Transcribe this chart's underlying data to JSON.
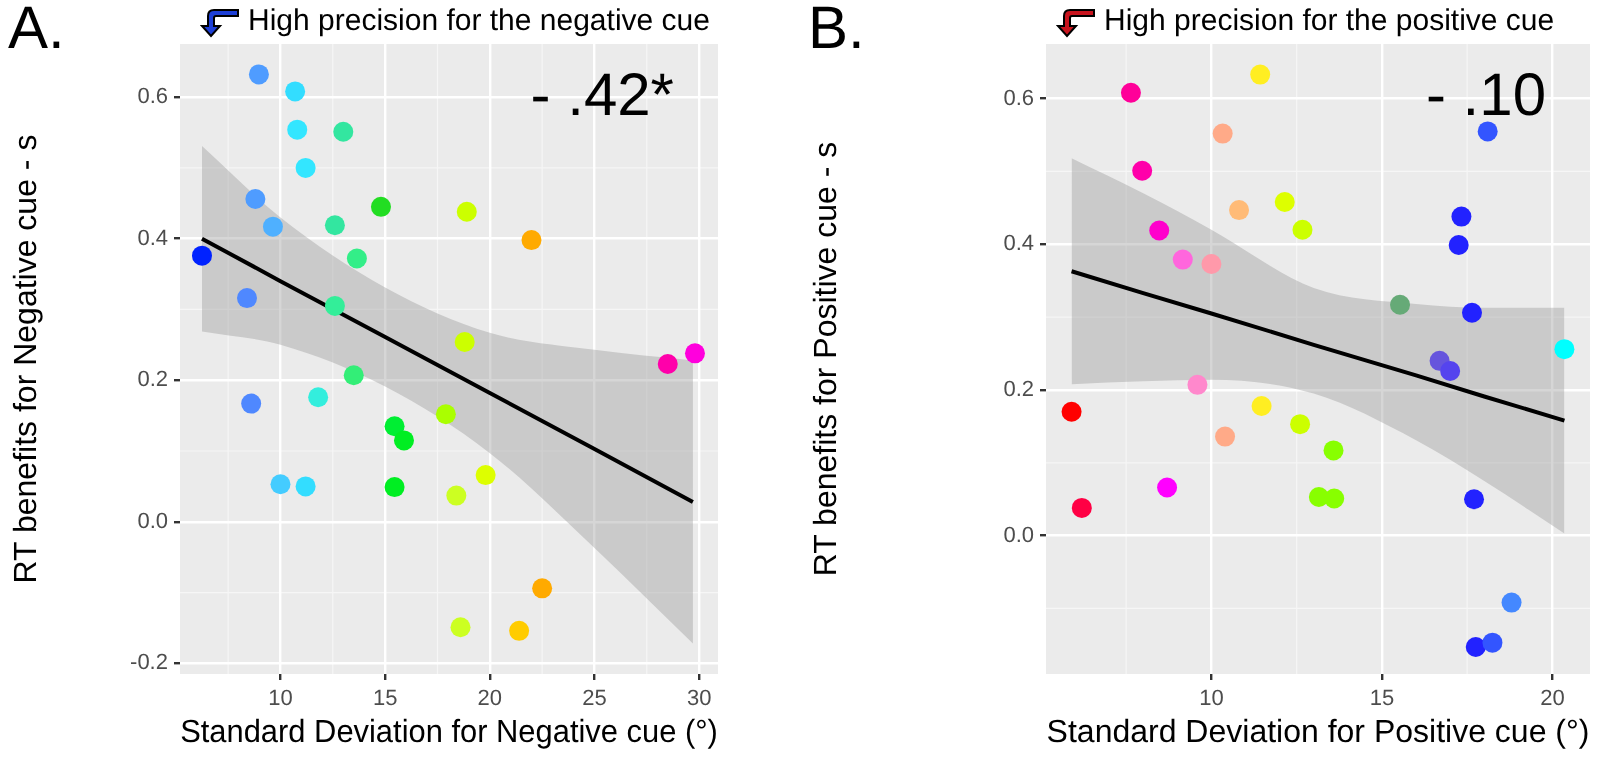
{
  "chart_data": [
    {
      "type": "scatter",
      "title": "A.",
      "subtitle": "High precision for the negative cue",
      "xlabel": "Standard Deviation for Negative cue (°)",
      "ylabel": "RT benefits for Negative cue - s",
      "annotations": [
        "- .42*"
      ],
      "xlim": [
        5.2,
        30.9
      ],
      "ylim": [
        -0.215,
        0.675
      ],
      "xticks": [
        10,
        15,
        20,
        25,
        30
      ],
      "yticks": [
        -0.2,
        {
          "value": 0,
          "label": "0.0"
        },
        0.2,
        0.4,
        0.6
      ],
      "grid": true,
      "legend": false,
      "series": [
        {
          "marker": "circle",
          "x": [
            8.97,
            10.7,
            10.8,
            13.0,
            11.2,
            8.8,
            14.8,
            9.64,
            12.6,
            18.9,
            21.99,
            6.25,
            13.65,
            8.4,
            12.6,
            18.8,
            28.5,
            29.8,
            13.5,
            8.6,
            11.8,
            15.45,
            15.9,
            17.9,
            10.0,
            11.2,
            15.45,
            19.8,
            18.4,
            22.5,
            18.6,
            21.4
          ],
          "values": [
            0.632,
            0.608,
            0.554,
            0.551,
            0.5,
            0.456,
            0.445,
            0.417,
            0.419,
            0.438,
            0.398,
            0.376,
            0.372,
            0.316,
            0.305,
            0.254,
            0.223,
            0.238,
            0.207,
            0.167,
            0.176,
            0.135,
            0.115,
            0.152,
            0.053,
            0.05,
            0.049,
            0.066,
            0.037,
            -0.094,
            -0.149,
            -0.154
          ],
          "colors": [
            "#4f9cff",
            "#33ddff",
            "#33e6ff",
            "#33e6a0",
            "#33e6ff",
            "#4f9cff",
            "#22dd22",
            "#4fb0ff",
            "#33e6a0",
            "#ccff00",
            "#ffaa00",
            "#0022ff",
            "#33ee88",
            "#4f88ff",
            "#33ee99",
            "#ccff00",
            "#ff00aa",
            "#ff00dd",
            "#33ee77",
            "#4f88ff",
            "#33eedd",
            "#00ee33",
            "#00ee22",
            "#aaff00",
            "#44ccff",
            "#33ddff",
            "#00ee22",
            "#ddff00",
            "#ccff22",
            "#ffaa00",
            "#ccff22",
            "#ffcc00"
          ]
        },
        {
          "type": "line",
          "color": "#000000",
          "x": [
            6.25,
            10,
            15,
            20,
            25,
            29.7
          ],
          "values": [
            0.4,
            0.34,
            0.261,
            0.182,
            0.103,
            0.028
          ],
          "lower": [
            0.269,
            0.25,
            0.191,
            0.097,
            -0.037,
            -0.172
          ],
          "upper": [
            0.531,
            0.43,
            0.331,
            0.267,
            0.243,
            0.228
          ]
        }
      ]
    },
    {
      "type": "scatter",
      "title": "B.",
      "subtitle": "High precision for the positive cue",
      "xlabel": "Standard Deviation for Positive cue (°)",
      "ylabel": "RT benefits for Positive cue - s",
      "annotations": [
        "- .10"
      ],
      "xlim": [
        5.15,
        21.1
      ],
      "ylim": [
        -0.19,
        0.675
      ],
      "xticks": [
        10,
        15,
        20
      ],
      "yticks": [
        {
          "value": 0,
          "label": "0.0"
        },
        0.2,
        0.4,
        0.6
      ],
      "grid": true,
      "legend": false,
      "series": [
        {
          "marker": "circle",
          "x": [
            7.64,
            11.43,
            10.33,
            18.1,
            7.97,
            10.81,
            12.15,
            12.67,
            8.47,
            17.33,
            17.25,
            9.16,
            10.0,
            15.53,
            17.64,
            20.35,
            16.69,
            17.0,
            9.59,
            5.9,
            11.47,
            10.4,
            12.6,
            13.58,
            8.7,
            6.2,
            13.15,
            13.6,
            17.7,
            18.8,
            17.75,
            18.24
          ],
          "values": [
            0.608,
            0.633,
            0.552,
            0.555,
            0.501,
            0.447,
            0.458,
            0.42,
            0.419,
            0.438,
            0.399,
            0.379,
            0.373,
            0.317,
            0.306,
            0.256,
            0.24,
            0.226,
            0.207,
            0.17,
            0.178,
            0.136,
            0.153,
            0.117,
            0.066,
            0.038,
            0.053,
            0.051,
            0.05,
            -0.092,
            -0.153,
            -0.147
          ],
          "colors": [
            "#ff0099",
            "#ffee22",
            "#ffaa88",
            "#3355ff",
            "#ff00aa",
            "#ffbb77",
            "#ddff00",
            "#ccff00",
            "#ff00cc",
            "#2222ff",
            "#2222ff",
            "#ff66dd",
            "#ff99aa",
            "#66aa77",
            "#2222ff",
            "#00ffff",
            "#6655dd",
            "#5544ee",
            "#ff88cc",
            "#ff0000",
            "#ffee22",
            "#ffaa88",
            "#ccff00",
            "#88ff00",
            "#ff00ff",
            "#ff0044",
            "#88ff00",
            "#88ff00",
            "#2222ff",
            "#4488ff",
            "#2222ff",
            "#3355ff"
          ]
        },
        {
          "type": "line",
          "color": "#000000",
          "x": [
            5.9,
            8,
            10,
            13,
            16,
            18,
            20.35
          ],
          "values": [
            0.363,
            0.333,
            0.305,
            0.262,
            0.22,
            0.191,
            0.158
          ],
          "lower": [
            0.208,
            0.212,
            0.214,
            0.195,
            0.131,
            0.075,
            0.003
          ],
          "upper": [
            0.518,
            0.47,
            0.42,
            0.34,
            0.318,
            0.313,
            0.313
          ]
        }
      ]
    }
  ]
}
